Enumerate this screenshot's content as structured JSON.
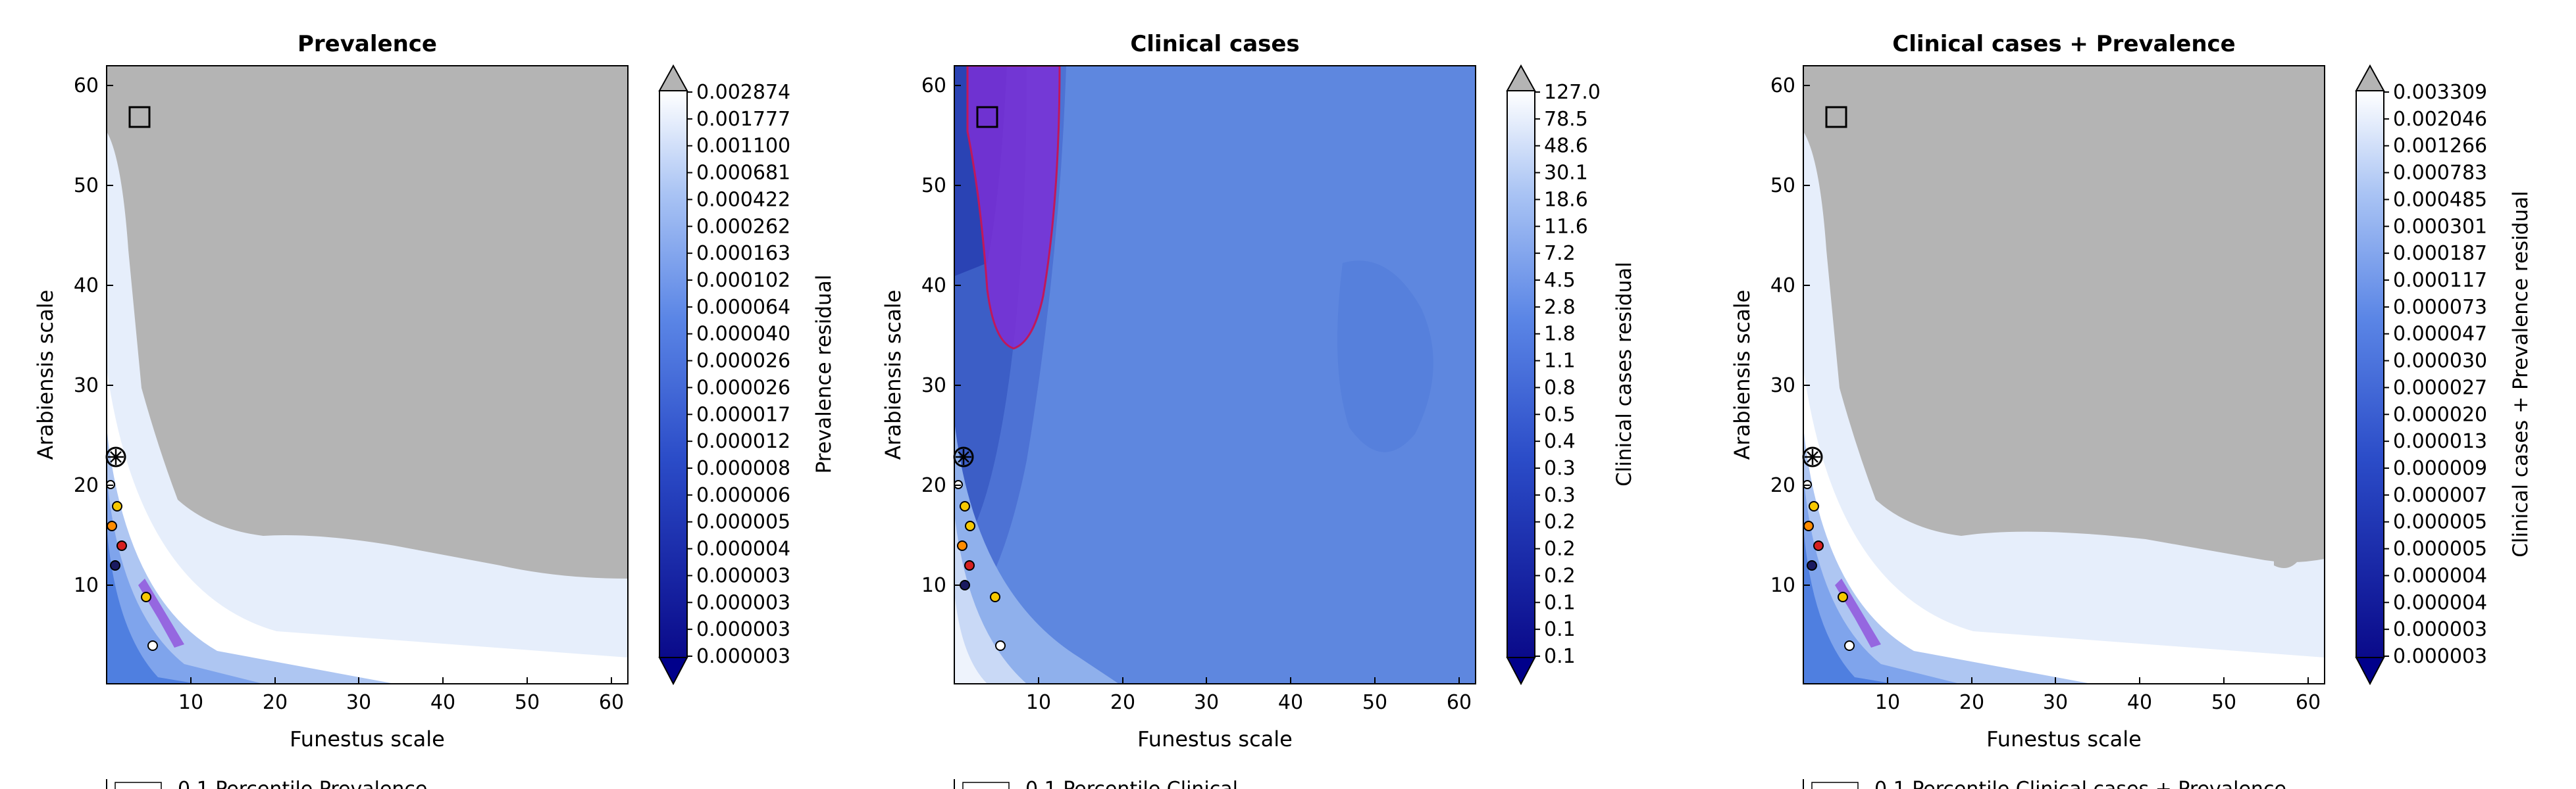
{
  "chart_data": [
    {
      "type": "heatmap",
      "title": "Prevalence",
      "xlabel": "Funestus scale",
      "ylabel": "Arabiensis scale",
      "xlim": [
        0,
        62
      ],
      "ylim": [
        0,
        62
      ],
      "xticks": [
        "10",
        "20",
        "30",
        "40",
        "50",
        "60"
      ],
      "yticks": [
        "10",
        "20",
        "30",
        "40",
        "50",
        "60"
      ],
      "colorbar_label": "Prevalence residual",
      "colorbar_ticks": [
        "0.002874",
        "0.001777",
        "0.001100",
        "0.000681",
        "0.000422",
        "0.000262",
        "0.000163",
        "0.000102",
        "0.000064",
        "0.000040",
        "0.000026",
        "0.000026",
        "0.000017",
        "0.000012",
        "0.000008",
        "0.000006",
        "0.000005",
        "0.000004",
        "0.000003",
        "0.000003",
        "0.000003",
        "0.000003"
      ],
      "legend_partial": "0.1 Percentile Prevalence",
      "markers": {
        "square": [
          3.5,
          57
        ],
        "star": [
          1,
          23
        ]
      }
    },
    {
      "type": "heatmap",
      "title": "Clinical cases",
      "xlabel": "Funestus scale",
      "ylabel": "Arabiensis scale",
      "xlim": [
        0,
        62
      ],
      "ylim": [
        0,
        62
      ],
      "xticks": [
        "10",
        "20",
        "30",
        "40",
        "50",
        "60"
      ],
      "yticks": [
        "10",
        "20",
        "30",
        "40",
        "50",
        "60"
      ],
      "colorbar_label": "Clinical cases residual",
      "colorbar_ticks": [
        "127.0",
        "78.5",
        "48.6",
        "30.1",
        "18.6",
        "11.6",
        "7.2",
        "4.5",
        "2.8",
        "1.8",
        "1.1",
        "0.8",
        "0.5",
        "0.4",
        "0.3",
        "0.3",
        "0.2",
        "0.2",
        "0.2",
        "0.1",
        "0.1",
        "0.1"
      ],
      "legend_partial": "0.1 Percentile Clinical",
      "markers": {
        "square": [
          3.5,
          57
        ],
        "star": [
          1,
          23
        ]
      }
    },
    {
      "type": "heatmap",
      "title": "Clinical cases + Prevalence",
      "xlabel": "Funestus scale",
      "ylabel": "Arabiensis scale",
      "xlim": [
        0,
        62
      ],
      "ylim": [
        0,
        62
      ],
      "xticks": [
        "10",
        "20",
        "30",
        "40",
        "50",
        "60"
      ],
      "yticks": [
        "10",
        "20",
        "30",
        "40",
        "50",
        "60"
      ],
      "colorbar_label": "Clinical cases + Prevalence residual",
      "colorbar_ticks": [
        "0.003309",
        "0.002046",
        "0.001266",
        "0.000783",
        "0.000485",
        "0.000301",
        "0.000187",
        "0.000117",
        "0.000073",
        "0.000047",
        "0.000030",
        "0.000027",
        "0.000020",
        "0.000013",
        "0.000009",
        "0.000007",
        "0.000005",
        "0.000005",
        "0.000004",
        "0.000004",
        "0.000003",
        "0.000003"
      ],
      "legend_partial": "0.1 Percentile Clinical cases + Prevalence",
      "markers": {
        "square": [
          3.5,
          57
        ],
        "star": [
          1,
          23
        ]
      }
    }
  ],
  "colors": {
    "masked": "#b4b4b4",
    "low": "#00008b",
    "mid": "#4f7fe0",
    "high": "#ffffff",
    "region": "#7b2fd6",
    "region_edge": "#c0185a"
  }
}
